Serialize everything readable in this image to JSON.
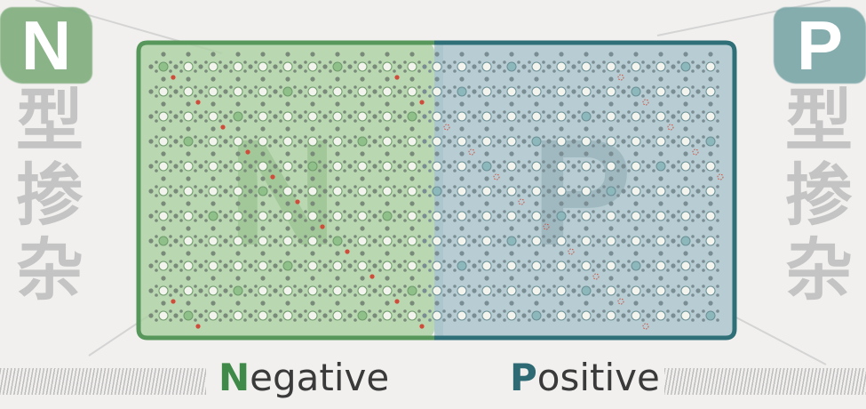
{
  "left": {
    "letter": "N",
    "chars": [
      "型",
      "掺",
      "杂"
    ],
    "label_first": "N",
    "label_rest": "egative",
    "watermark": "N",
    "color": "#7fae7e"
  },
  "right": {
    "letter": "P",
    "chars": [
      "型",
      "掺",
      "杂"
    ],
    "label_first": "P",
    "label_rest": "ositive",
    "watermark": "P",
    "color": "#7aa6a8"
  }
}
